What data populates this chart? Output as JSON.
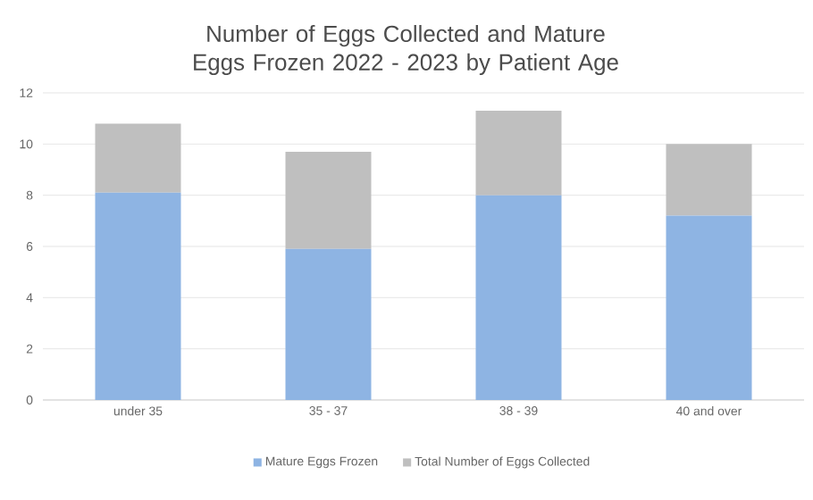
{
  "chart_data": {
    "type": "bar",
    "stacked": true,
    "title": "Number of Eggs Collected and Mature Eggs Frozen 2022 - 2023 by Patient Age",
    "categories": [
      "under 35",
      "35 - 37",
      "38 - 39",
      "40 and over"
    ],
    "series": [
      {
        "name": "Mature Eggs Frozen",
        "color": "#8eb4e3",
        "values": [
          8.1,
          5.9,
          8.0,
          7.2
        ]
      },
      {
        "name": "Total Number of Eggs Collected",
        "color": "#bfbfbf",
        "values": [
          2.7,
          3.8,
          3.3,
          2.8
        ]
      }
    ],
    "ylim": [
      0,
      12
    ],
    "yticks": [
      0,
      2,
      4,
      6,
      8,
      10,
      12
    ],
    "grid": "y",
    "legend": "bottom"
  }
}
